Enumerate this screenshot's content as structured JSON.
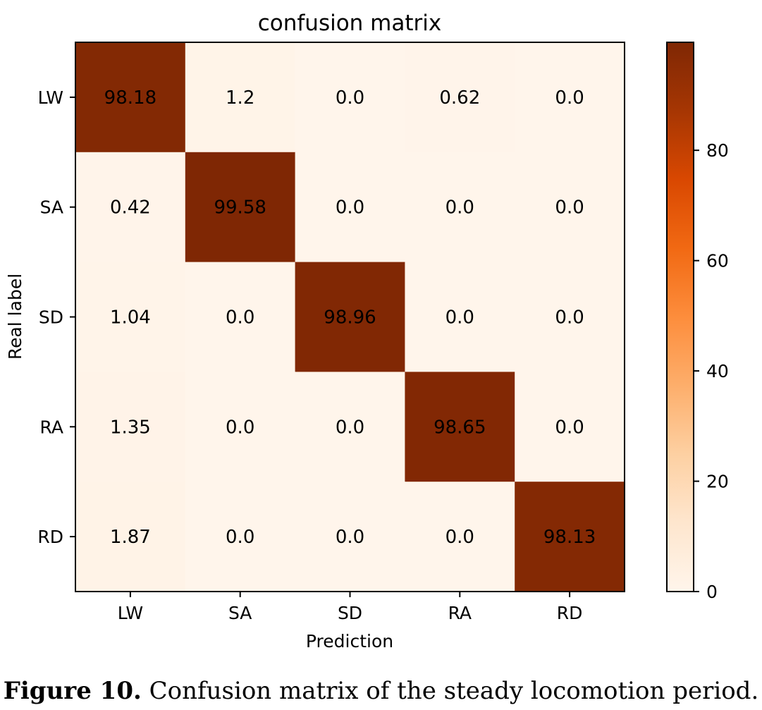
{
  "chart_data": {
    "type": "heatmap",
    "title": "confusion matrix",
    "xlabel": "Prediction",
    "ylabel": "Real label",
    "x_categories": [
      "LW",
      "SA",
      "SD",
      "RA",
      "RD"
    ],
    "y_categories": [
      "LW",
      "SA",
      "SD",
      "RA",
      "RD"
    ],
    "values": [
      [
        98.18,
        1.2,
        0.0,
        0.62,
        0.0
      ],
      [
        0.42,
        99.58,
        0.0,
        0.0,
        0.0
      ],
      [
        1.04,
        0.0,
        98.96,
        0.0,
        0.0
      ],
      [
        1.35,
        0.0,
        0.0,
        98.65,
        0.0
      ],
      [
        1.87,
        0.0,
        0.0,
        0.0,
        98.13
      ]
    ],
    "value_labels": [
      [
        "98.18",
        "1.2",
        "0.0",
        "0.62",
        "0.0"
      ],
      [
        "0.42",
        "99.58",
        "0.0",
        "0.0",
        "0.0"
      ],
      [
        "1.04",
        "0.0",
        "98.96",
        "0.0",
        "0.0"
      ],
      [
        "1.35",
        "0.0",
        "0.0",
        "98.65",
        "0.0"
      ],
      [
        "1.87",
        "0.0",
        "0.0",
        "0.0",
        "98.13"
      ]
    ],
    "colormap": "Oranges",
    "colorbar": {
      "min": 0,
      "max": 99.58,
      "ticks": [
        0,
        20,
        40,
        60,
        80
      ],
      "tick_labels": [
        "0",
        "20",
        "40",
        "60",
        "80"
      ],
      "placement": "right"
    },
    "grid": false
  },
  "caption": {
    "label": "Figure 10.",
    "text": " Confusion matrix of the steady locomotion period."
  }
}
